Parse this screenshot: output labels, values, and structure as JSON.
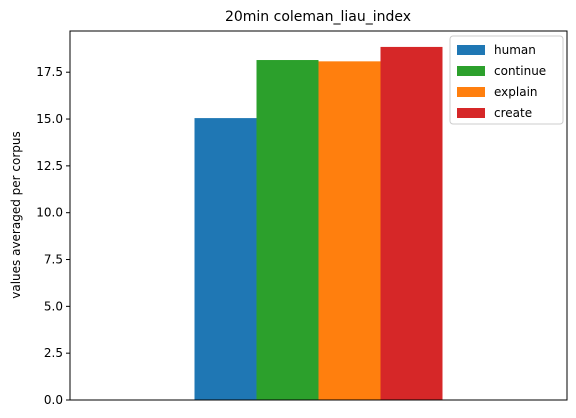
{
  "chart_data": {
    "type": "bar",
    "title": "20min coleman_liau_index",
    "xlabel": "",
    "ylabel": "values averaged per corpus",
    "ylim": [
      0,
      19.7
    ],
    "yticks": [
      0.0,
      2.5,
      5.0,
      7.5,
      10.0,
      12.5,
      15.0,
      17.5
    ],
    "ytick_labels": [
      "0.0",
      "2.5",
      "5.0",
      "7.5",
      "10.0",
      "12.5",
      "15.0",
      "17.5"
    ],
    "categories": [
      ""
    ],
    "series": [
      {
        "name": "human",
        "values": [
          15.05
        ],
        "color": "#1f77b4"
      },
      {
        "name": "continue",
        "values": [
          18.15
        ],
        "color": "#2ca02c"
      },
      {
        "name": "explain",
        "values": [
          18.08
        ],
        "color": "#ff7f0e"
      },
      {
        "name": "create",
        "values": [
          18.85
        ],
        "color": "#d62728"
      }
    ],
    "grid": false,
    "legend": "top-right"
  }
}
